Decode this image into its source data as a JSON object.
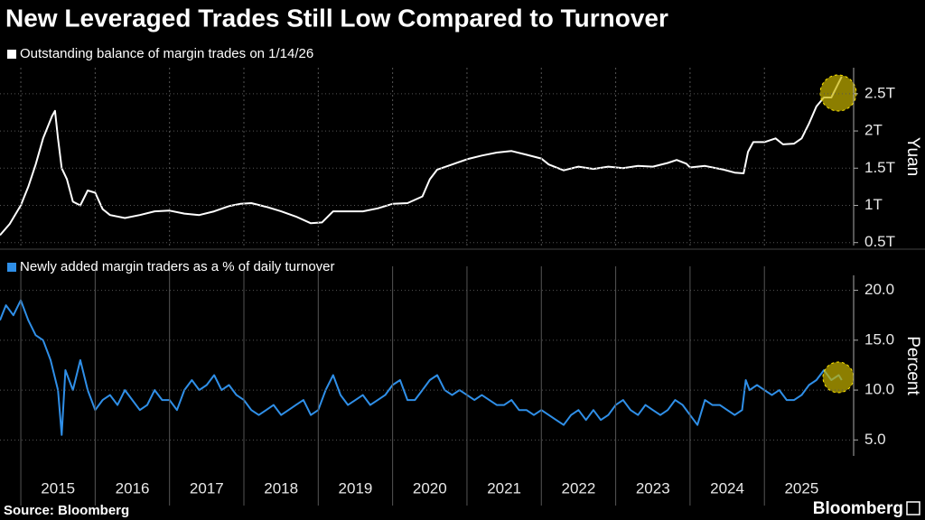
{
  "title": "New Leveraged Trades Still Low Compared to Turnover",
  "source": "Source: Bloomberg",
  "brand": "Bloomberg",
  "chart_data": [
    {
      "type": "line",
      "y_label": "Yuan",
      "grid": true,
      "xlim": [
        2014.72,
        2026.2
      ],
      "ylim": [
        0.46,
        2.85
      ],
      "yticks": [
        {
          "value": 0.5,
          "label": "0.5T"
        },
        {
          "value": 1,
          "label": "1T"
        },
        {
          "value": 1.5,
          "label": "1.5T"
        },
        {
          "value": 2,
          "label": "2T"
        },
        {
          "value": 2.5,
          "label": "2.5T"
        }
      ],
      "series": [
        {
          "name": "Outstanding balance of margin trades on 1/14/26",
          "color": "#ffffff",
          "x": [
            2014.72,
            2014.85,
            2015.0,
            2015.1,
            2015.2,
            2015.3,
            2015.42,
            2015.46,
            2015.5,
            2015.55,
            2015.62,
            2015.7,
            2015.8,
            2015.9,
            2016.0,
            2016.1,
            2016.2,
            2016.4,
            2016.6,
            2016.8,
            2017.0,
            2017.2,
            2017.4,
            2017.6,
            2017.8,
            2017.95,
            2018.1,
            2018.3,
            2018.5,
            2018.7,
            2018.9,
            2019.05,
            2019.2,
            2019.4,
            2019.6,
            2019.8,
            2020.0,
            2020.2,
            2020.4,
            2020.5,
            2020.6,
            2020.8,
            2021.0,
            2021.2,
            2021.4,
            2021.6,
            2021.8,
            2022.0,
            2022.1,
            2022.3,
            2022.5,
            2022.7,
            2022.9,
            2023.1,
            2023.3,
            2023.5,
            2023.7,
            2023.82,
            2023.95,
            2024.0,
            2024.2,
            2024.45,
            2024.6,
            2024.72,
            2024.78,
            2024.85,
            2025.0,
            2025.15,
            2025.25,
            2025.4,
            2025.5,
            2025.6,
            2025.7,
            2025.8,
            2025.9,
            2026.0,
            2026.04
          ],
          "values": [
            0.6,
            0.75,
            1.0,
            1.25,
            1.55,
            1.9,
            2.2,
            2.27,
            1.9,
            1.5,
            1.35,
            1.05,
            1.0,
            1.2,
            1.17,
            0.95,
            0.87,
            0.83,
            0.87,
            0.92,
            0.93,
            0.89,
            0.87,
            0.92,
            0.99,
            1.02,
            1.03,
            0.98,
            0.92,
            0.85,
            0.76,
            0.77,
            0.92,
            0.92,
            0.92,
            0.96,
            1.02,
            1.03,
            1.12,
            1.35,
            1.48,
            1.55,
            1.62,
            1.67,
            1.71,
            1.73,
            1.68,
            1.63,
            1.55,
            1.47,
            1.52,
            1.49,
            1.52,
            1.5,
            1.53,
            1.52,
            1.57,
            1.61,
            1.56,
            1.51,
            1.53,
            1.48,
            1.44,
            1.43,
            1.72,
            1.85,
            1.85,
            1.9,
            1.82,
            1.83,
            1.9,
            2.1,
            2.33,
            2.45,
            2.45,
            2.65,
            2.73
          ]
        }
      ]
    },
    {
      "type": "line",
      "y_label": "Percent",
      "grid": true,
      "xlim": [
        2014.72,
        2026.2
      ],
      "ylim": [
        3.4,
        21.5
      ],
      "xticks": [
        {
          "value": 2015,
          "label": "2015"
        },
        {
          "value": 2016,
          "label": "2016"
        },
        {
          "value": 2017,
          "label": "2017"
        },
        {
          "value": 2018,
          "label": "2018"
        },
        {
          "value": 2019,
          "label": "2019"
        },
        {
          "value": 2020,
          "label": "2020"
        },
        {
          "value": 2021,
          "label": "2021"
        },
        {
          "value": 2022,
          "label": "2022"
        },
        {
          "value": 2023,
          "label": "2023"
        },
        {
          "value": 2024,
          "label": "2024"
        },
        {
          "value": 2025,
          "label": "2025"
        }
      ],
      "yticks": [
        {
          "value": 5,
          "label": "5.0"
        },
        {
          "value": 10,
          "label": "10.0"
        },
        {
          "value": 15,
          "label": "15.0"
        },
        {
          "value": 20,
          "label": "20.0"
        }
      ],
      "series": [
        {
          "name": "Newly added margin traders as a % of daily turnover",
          "color": "#2f8fe8",
          "x": [
            2014.72,
            2014.8,
            2014.9,
            2015.0,
            2015.1,
            2015.2,
            2015.3,
            2015.4,
            2015.5,
            2015.55,
            2015.6,
            2015.7,
            2015.8,
            2015.9,
            2016.0,
            2016.1,
            2016.2,
            2016.3,
            2016.4,
            2016.5,
            2016.6,
            2016.7,
            2016.8,
            2016.9,
            2017.0,
            2017.1,
            2017.2,
            2017.3,
            2017.4,
            2017.5,
            2017.6,
            2017.7,
            2017.8,
            2017.9,
            2018.0,
            2018.1,
            2018.2,
            2018.3,
            2018.4,
            2018.5,
            2018.6,
            2018.7,
            2018.8,
            2018.9,
            2019.0,
            2019.1,
            2019.2,
            2019.3,
            2019.4,
            2019.5,
            2019.6,
            2019.7,
            2019.8,
            2019.9,
            2020.0,
            2020.1,
            2020.2,
            2020.3,
            2020.4,
            2020.5,
            2020.6,
            2020.7,
            2020.8,
            2020.9,
            2021.0,
            2021.1,
            2021.2,
            2021.3,
            2021.4,
            2021.5,
            2021.6,
            2021.7,
            2021.8,
            2021.9,
            2022.0,
            2022.1,
            2022.2,
            2022.3,
            2022.4,
            2022.5,
            2022.6,
            2022.7,
            2022.8,
            2022.9,
            2023.0,
            2023.1,
            2023.2,
            2023.3,
            2023.4,
            2023.5,
            2023.6,
            2023.7,
            2023.8,
            2023.9,
            2024.0,
            2024.1,
            2024.2,
            2024.3,
            2024.4,
            2024.5,
            2024.6,
            2024.7,
            2024.75,
            2024.8,
            2024.9,
            2025.0,
            2025.1,
            2025.2,
            2025.3,
            2025.4,
            2025.5,
            2025.6,
            2025.7,
            2025.8,
            2025.9,
            2026.0,
            2026.04
          ],
          "values": [
            17,
            18.5,
            17.5,
            19,
            17,
            15.5,
            15,
            13,
            10,
            5.5,
            12,
            10,
            13,
            10,
            8,
            9,
            9.5,
            8.5,
            10,
            9,
            8,
            8.5,
            10,
            9,
            9,
            8,
            10,
            11,
            10,
            10.5,
            11.5,
            10,
            10.5,
            9.5,
            9,
            8,
            7.5,
            8,
            8.5,
            7.5,
            8,
            8.5,
            9,
            7.5,
            8,
            10,
            11.5,
            9.5,
            8.5,
            9,
            9.5,
            8.5,
            9,
            9.5,
            10.5,
            11,
            9,
            9,
            10,
            11,
            11.5,
            10,
            9.5,
            10,
            9.5,
            9,
            9.5,
            9,
            8.5,
            8.5,
            9,
            8,
            8,
            7.5,
            8,
            7.5,
            7,
            6.5,
            7.5,
            8,
            7,
            8,
            7,
            7.5,
            8.5,
            9,
            8,
            7.5,
            8.5,
            8,
            7.5,
            8,
            9,
            8.5,
            7.5,
            6.5,
            9,
            8.5,
            8.5,
            8,
            7.5,
            8,
            11,
            10,
            10.5,
            10,
            9.5,
            10,
            9,
            9,
            9.5,
            10.5,
            11,
            12,
            11,
            11.5,
            11
          ]
        }
      ]
    }
  ]
}
